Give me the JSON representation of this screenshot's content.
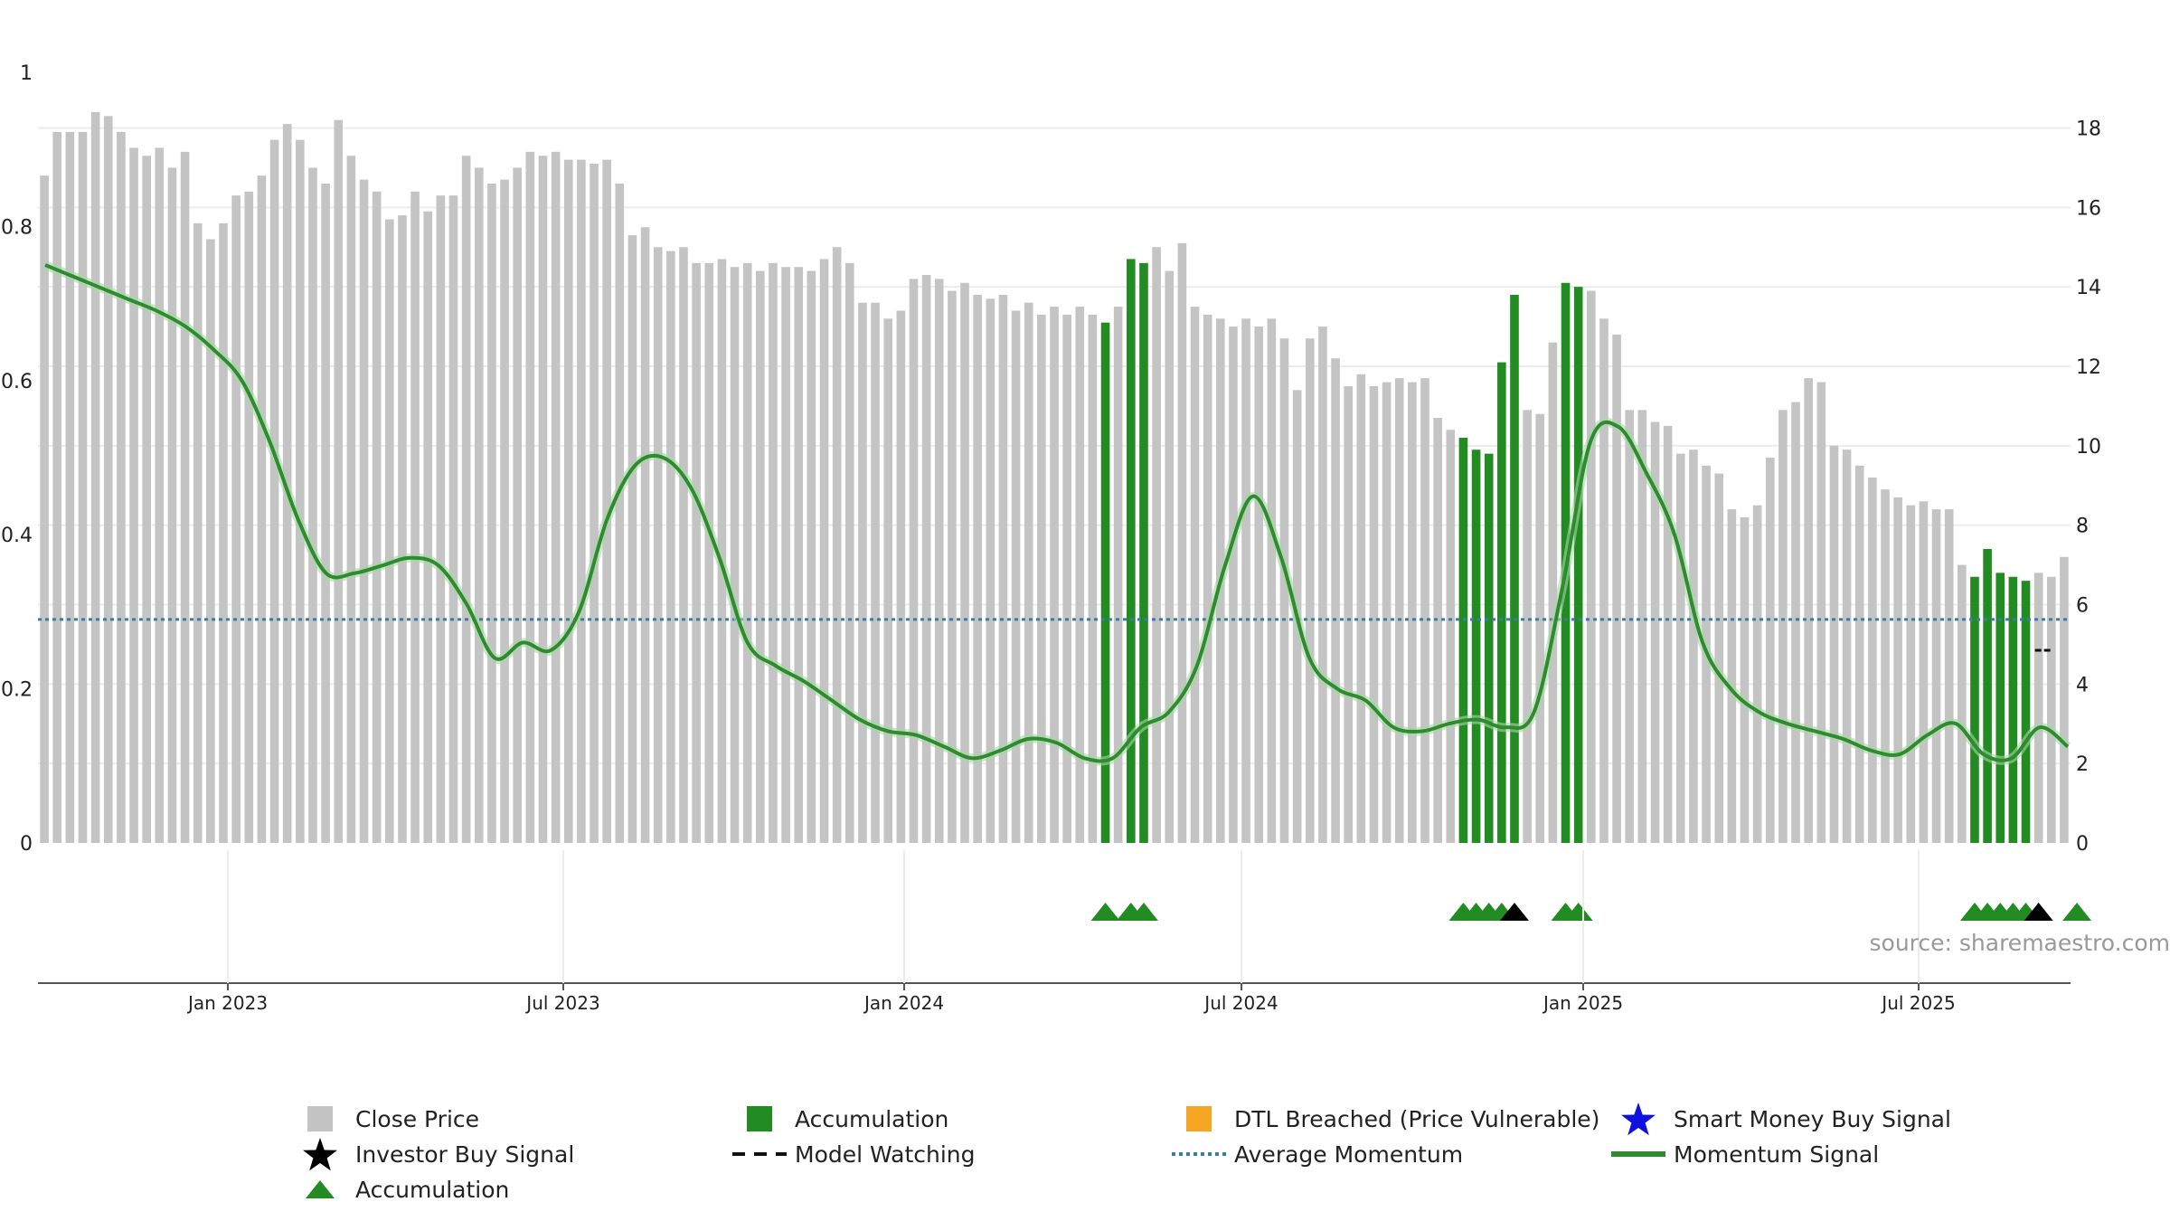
{
  "chart_data": {
    "type": "bar",
    "colors": {
      "close_price": "#c4c4c4",
      "accumulation": "#228b22",
      "momentum": "#2e8b2e",
      "average_momentum": "#3a7ca5",
      "dtl": "#f5a623",
      "smart_money": "#1010e0",
      "investor_buy": "#000000"
    },
    "left_axis": {
      "ylim": [
        0,
        1
      ],
      "ticks": [
        "0",
        "0.2",
        "0.4",
        "0.6",
        "0.8",
        "1"
      ]
    },
    "right_axis": {
      "ylim": [
        0,
        19.4
      ],
      "ticks": [
        "0",
        "2",
        "4",
        "6",
        "8",
        "10",
        "12",
        "14",
        "16",
        "18"
      ]
    },
    "x_ticks": [
      "Jan 2023",
      "Jul 2023",
      "Jan 2024",
      "Jul 2024",
      "Jan 2025",
      "Jul 2025"
    ],
    "close_prices": [
      16.8,
      17.9,
      17.9,
      17.9,
      18.4,
      18.3,
      17.9,
      17.5,
      17.3,
      17.5,
      17.0,
      17.4,
      15.6,
      15.2,
      15.6,
      16.3,
      16.4,
      16.8,
      17.7,
      18.1,
      17.7,
      17.0,
      16.6,
      18.2,
      17.3,
      16.7,
      16.4,
      15.7,
      15.8,
      16.4,
      15.9,
      16.3,
      16.3,
      17.3,
      17.0,
      16.6,
      16.7,
      17.0,
      17.4,
      17.3,
      17.4,
      17.2,
      17.2,
      17.1,
      17.2,
      16.6,
      15.3,
      15.5,
      15.0,
      14.9,
      15.0,
      14.6,
      14.6,
      14.7,
      14.5,
      14.6,
      14.4,
      14.6,
      14.5,
      14.5,
      14.4,
      14.7,
      15.0,
      14.6,
      13.6,
      13.6,
      13.2,
      13.4,
      14.2,
      14.3,
      14.2,
      13.9,
      14.1,
      13.8,
      13.7,
      13.8,
      13.4,
      13.6,
      13.3,
      13.5,
      13.3,
      13.5,
      13.3,
      13.1,
      13.5,
      14.7,
      14.6,
      15.0,
      14.4,
      15.1,
      13.5,
      13.3,
      13.2,
      13.0,
      13.2,
      13.0,
      13.2,
      12.7,
      11.4,
      12.7,
      13.0,
      12.2,
      11.5,
      11.8,
      11.5,
      11.6,
      11.7,
      11.6,
      11.7,
      10.7,
      10.4,
      10.2,
      9.9,
      9.8,
      12.1,
      13.8,
      10.9,
      10.8,
      12.6,
      14.1,
      14.0,
      13.9,
      13.2,
      12.8,
      10.9,
      10.9,
      10.6,
      10.5,
      9.8,
      9.9,
      9.5,
      9.3,
      8.4,
      8.2,
      8.5,
      9.7,
      10.9,
      11.1,
      11.7,
      11.6,
      10.0,
      9.9,
      9.5,
      9.2,
      8.9,
      8.7,
      8.5,
      8.6,
      8.4,
      8.4,
      7.0,
      6.7,
      7.4,
      6.8,
      6.7,
      6.6,
      6.8,
      6.7,
      7.2
    ],
    "accumulation_bars": [
      false,
      false,
      false,
      false,
      false,
      false,
      false,
      false,
      false,
      false,
      false,
      false,
      false,
      false,
      false,
      false,
      false,
      false,
      false,
      false,
      false,
      false,
      false,
      false,
      false,
      false,
      false,
      false,
      false,
      false,
      false,
      false,
      false,
      false,
      false,
      false,
      false,
      false,
      false,
      false,
      false,
      false,
      false,
      false,
      false,
      false,
      false,
      false,
      false,
      false,
      false,
      false,
      false,
      false,
      false,
      false,
      false,
      false,
      false,
      false,
      false,
      false,
      false,
      false,
      false,
      false,
      false,
      false,
      false,
      false,
      false,
      false,
      false,
      false,
      false,
      false,
      false,
      false,
      false,
      false,
      false,
      false,
      false,
      true,
      false,
      true,
      true,
      false,
      false,
      false,
      false,
      false,
      false,
      false,
      false,
      false,
      false,
      false,
      false,
      false,
      false,
      false,
      false,
      false,
      false,
      false,
      false,
      false,
      false,
      false,
      false,
      true,
      true,
      true,
      true,
      true,
      false,
      false,
      false,
      true,
      true,
      false,
      false,
      false,
      false,
      false,
      false,
      false,
      false,
      false,
      false,
      false,
      false,
      false,
      false,
      false,
      false,
      false,
      false,
      false,
      false,
      false,
      false,
      false,
      false,
      false,
      false,
      false,
      false,
      false,
      false,
      true,
      true,
      true,
      true,
      true,
      false,
      false,
      false,
      true,
      false,
      false
    ],
    "momentum": [
      0.75,
      0.735,
      0.72,
      0.705,
      0.69,
      0.67,
      0.64,
      0.6,
      0.52,
      0.42,
      0.35,
      0.35,
      0.36,
      0.37,
      0.36,
      0.31,
      0.24,
      0.26,
      0.25,
      0.3,
      0.42,
      0.49,
      0.5,
      0.46,
      0.37,
      0.26,
      0.23,
      0.21,
      0.185,
      0.16,
      0.145,
      0.14,
      0.125,
      0.11,
      0.12,
      0.135,
      0.13,
      0.11,
      0.11,
      0.15,
      0.17,
      0.23,
      0.36,
      0.45,
      0.37,
      0.24,
      0.2,
      0.185,
      0.15,
      0.145,
      0.155,
      0.16,
      0.15,
      0.17,
      0.33,
      0.52,
      0.54,
      0.48,
      0.4,
      0.26,
      0.2,
      0.17,
      0.155,
      0.145,
      0.135,
      0.12,
      0.115,
      0.14,
      0.155,
      0.115,
      0.11,
      0.15,
      0.125
    ],
    "average_momentum": 0.29,
    "model_watching_value": 0.25,
    "signals": {
      "accumulation_triangles": [
        83,
        85,
        86,
        111,
        112,
        113,
        114,
        119,
        120,
        151,
        152,
        153,
        154,
        155,
        159
      ],
      "investor_buy_triangles": [
        115,
        156
      ]
    },
    "legend": [
      {
        "label": "Close Price"
      },
      {
        "label": "Accumulation"
      },
      {
        "label": "DTL Breached (Price Vulnerable)"
      },
      {
        "label": "Smart Money Buy Signal"
      },
      {
        "label": "Investor Buy Signal"
      },
      {
        "label": "Model Watching"
      },
      {
        "label": "Average Momentum"
      },
      {
        "label": "Momentum Signal"
      },
      {
        "label": "Accumulation"
      }
    ],
    "source": "source: sharemaestro.com"
  }
}
